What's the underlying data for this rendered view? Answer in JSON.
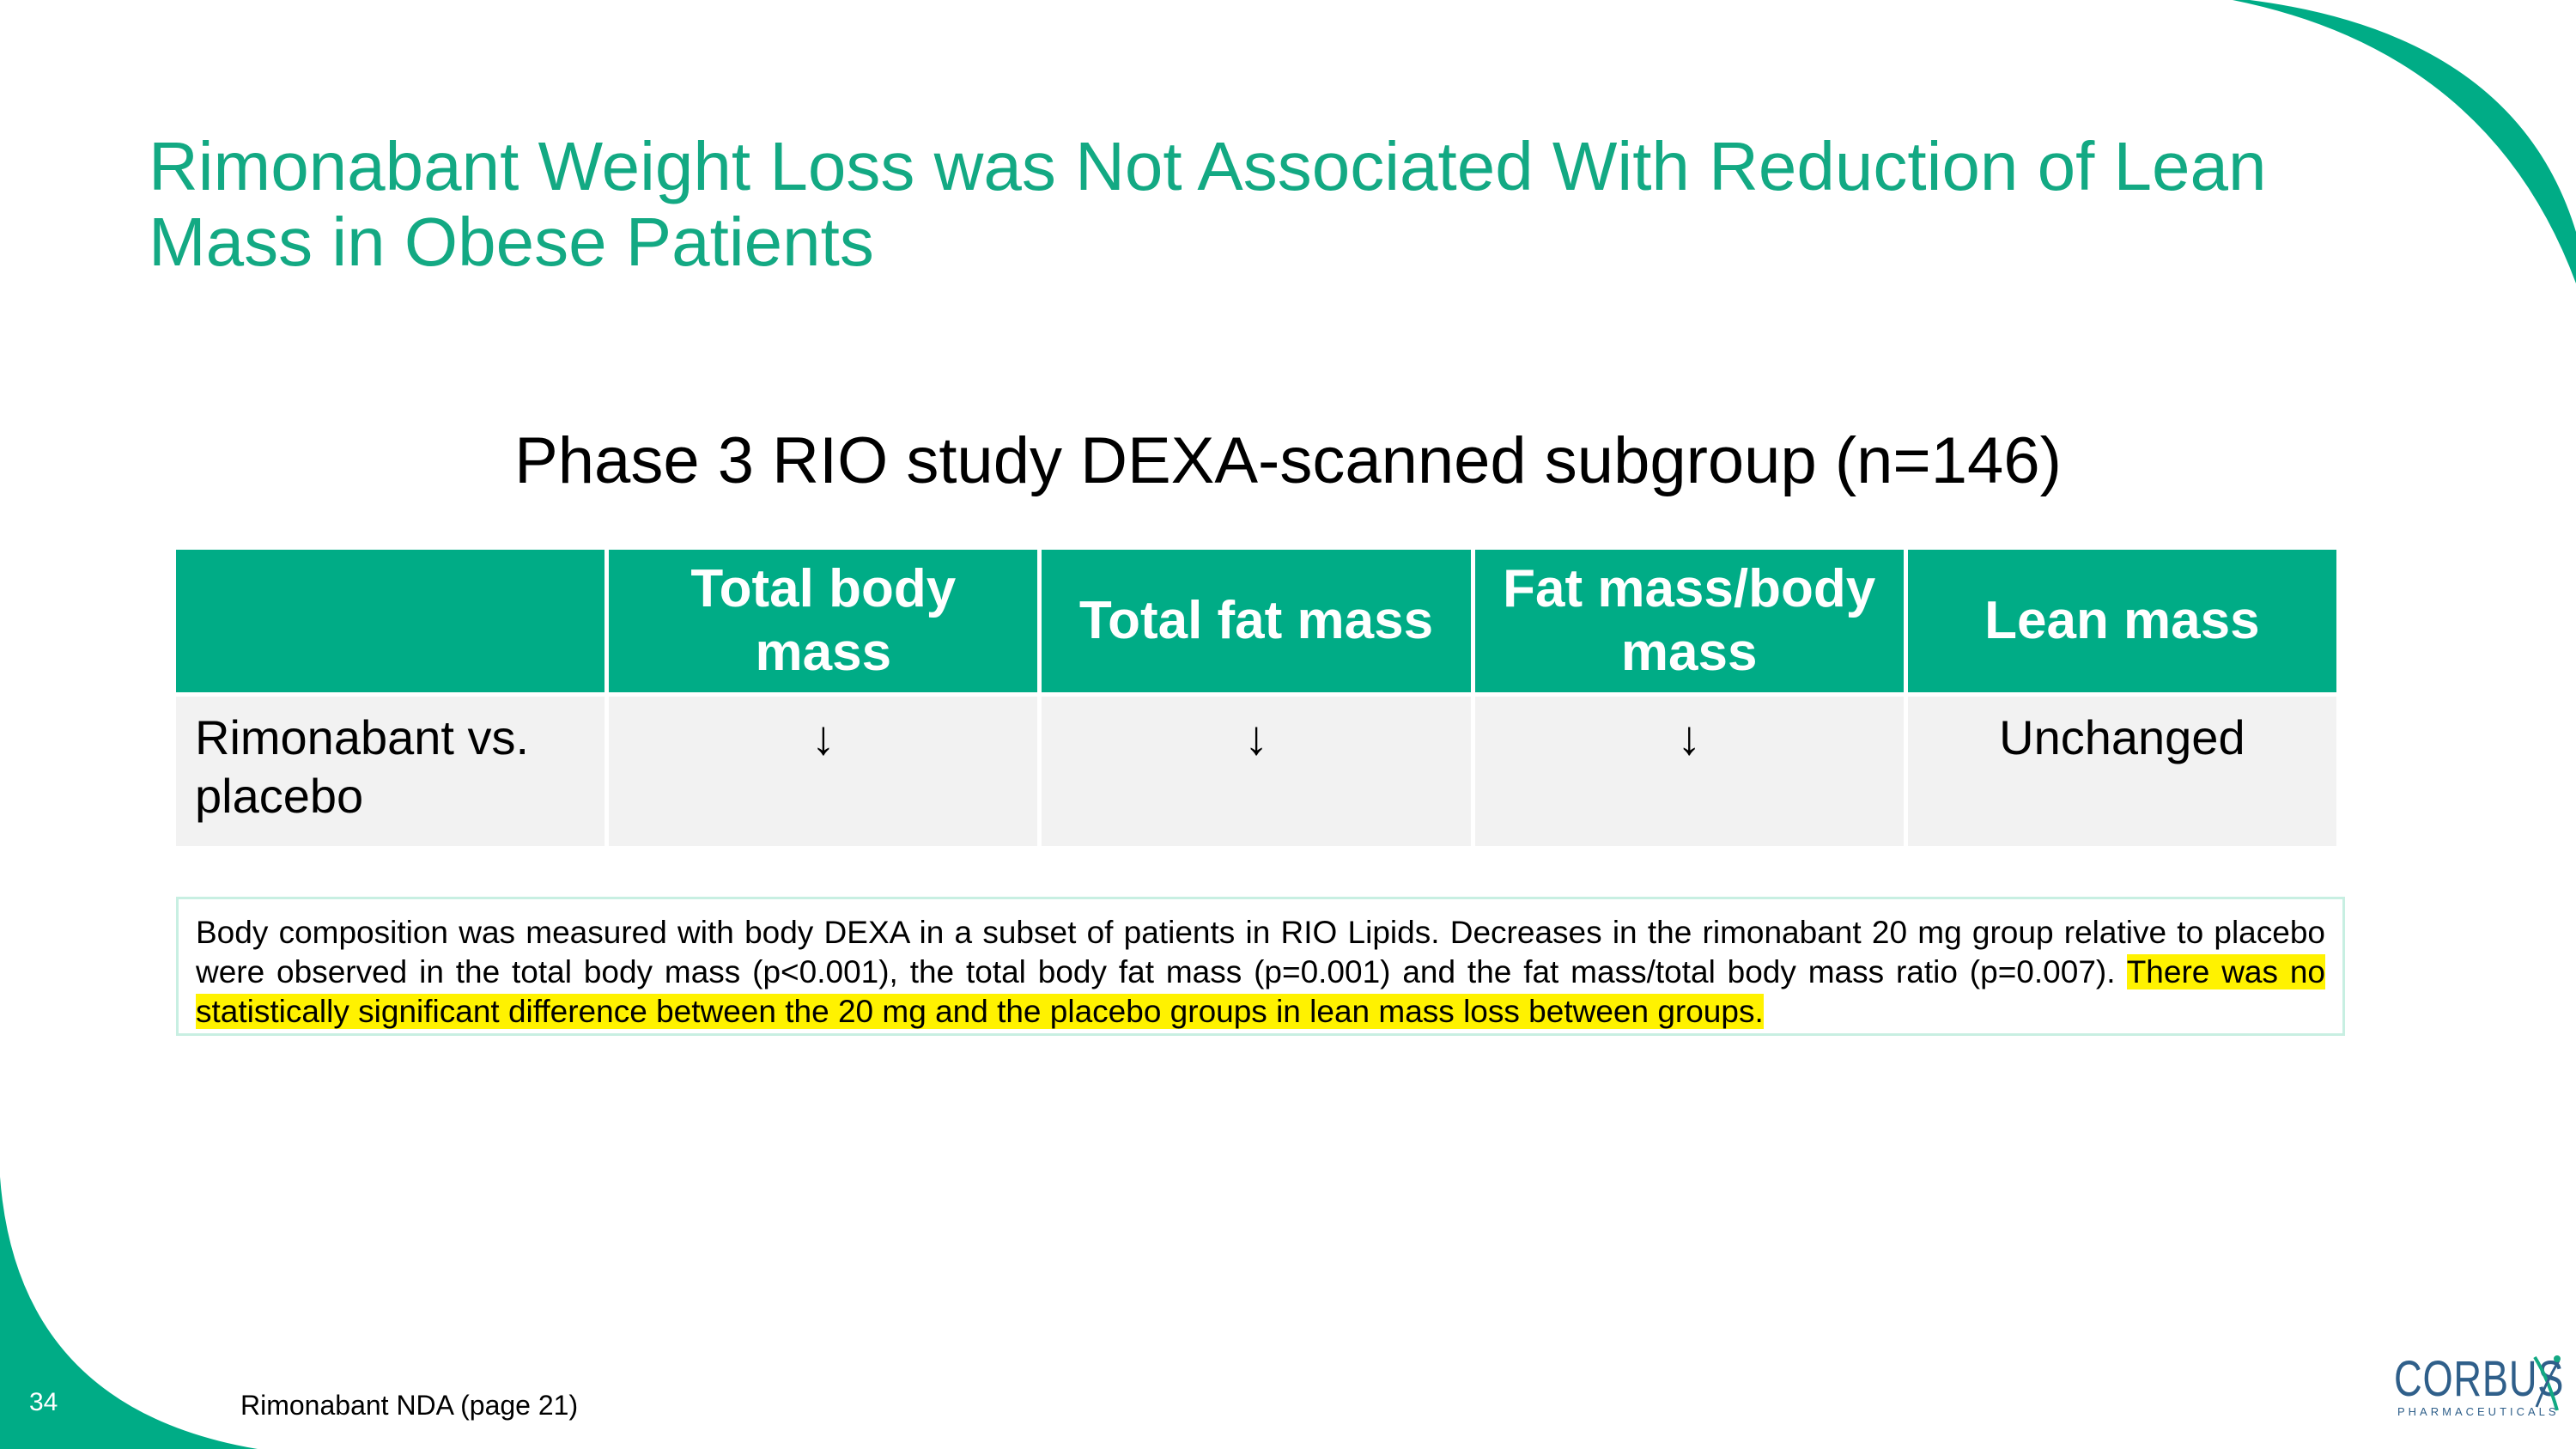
{
  "slide": {
    "title": "Rimonabant Weight Loss was Not Associated With Reduction of Lean Mass in Obese Patients",
    "subtitle": "Phase 3 RIO study DEXA-scanned subgroup (n=146)"
  },
  "table": {
    "headers": [
      "",
      "Total body mass",
      "Total fat mass",
      "Fat mass/body mass",
      "Lean mass"
    ],
    "row": {
      "label": "Rimonabant vs. placebo",
      "cells": [
        "↓",
        "↓",
        "↓",
        "Unchanged"
      ]
    }
  },
  "note": {
    "text_plain": "Body composition was measured with body DEXA in a subset of patients in RIO Lipids. Decreases in the rimonabant 20 mg group relative to placebo were observed in the total body mass (p<0.001), the total body fat mass (p=0.001) and the fat mass/total body mass ratio (p=0.007). ",
    "text_highlighted": "There was no statistically significant difference between the 20 mg and the placebo groups in lean mass loss between groups."
  },
  "footer": {
    "page_number": "34",
    "source": "Rimonabant NDA (page 21)"
  },
  "logo": {
    "name": "CORBUS",
    "tagline": "PHARMACEUTICALS",
    "icon": "corbus-x-mark-icon"
  },
  "colors": {
    "accent": "#00ac86",
    "title": "#13a983",
    "highlight": "#fff200",
    "logo": "#2f5f8a"
  }
}
